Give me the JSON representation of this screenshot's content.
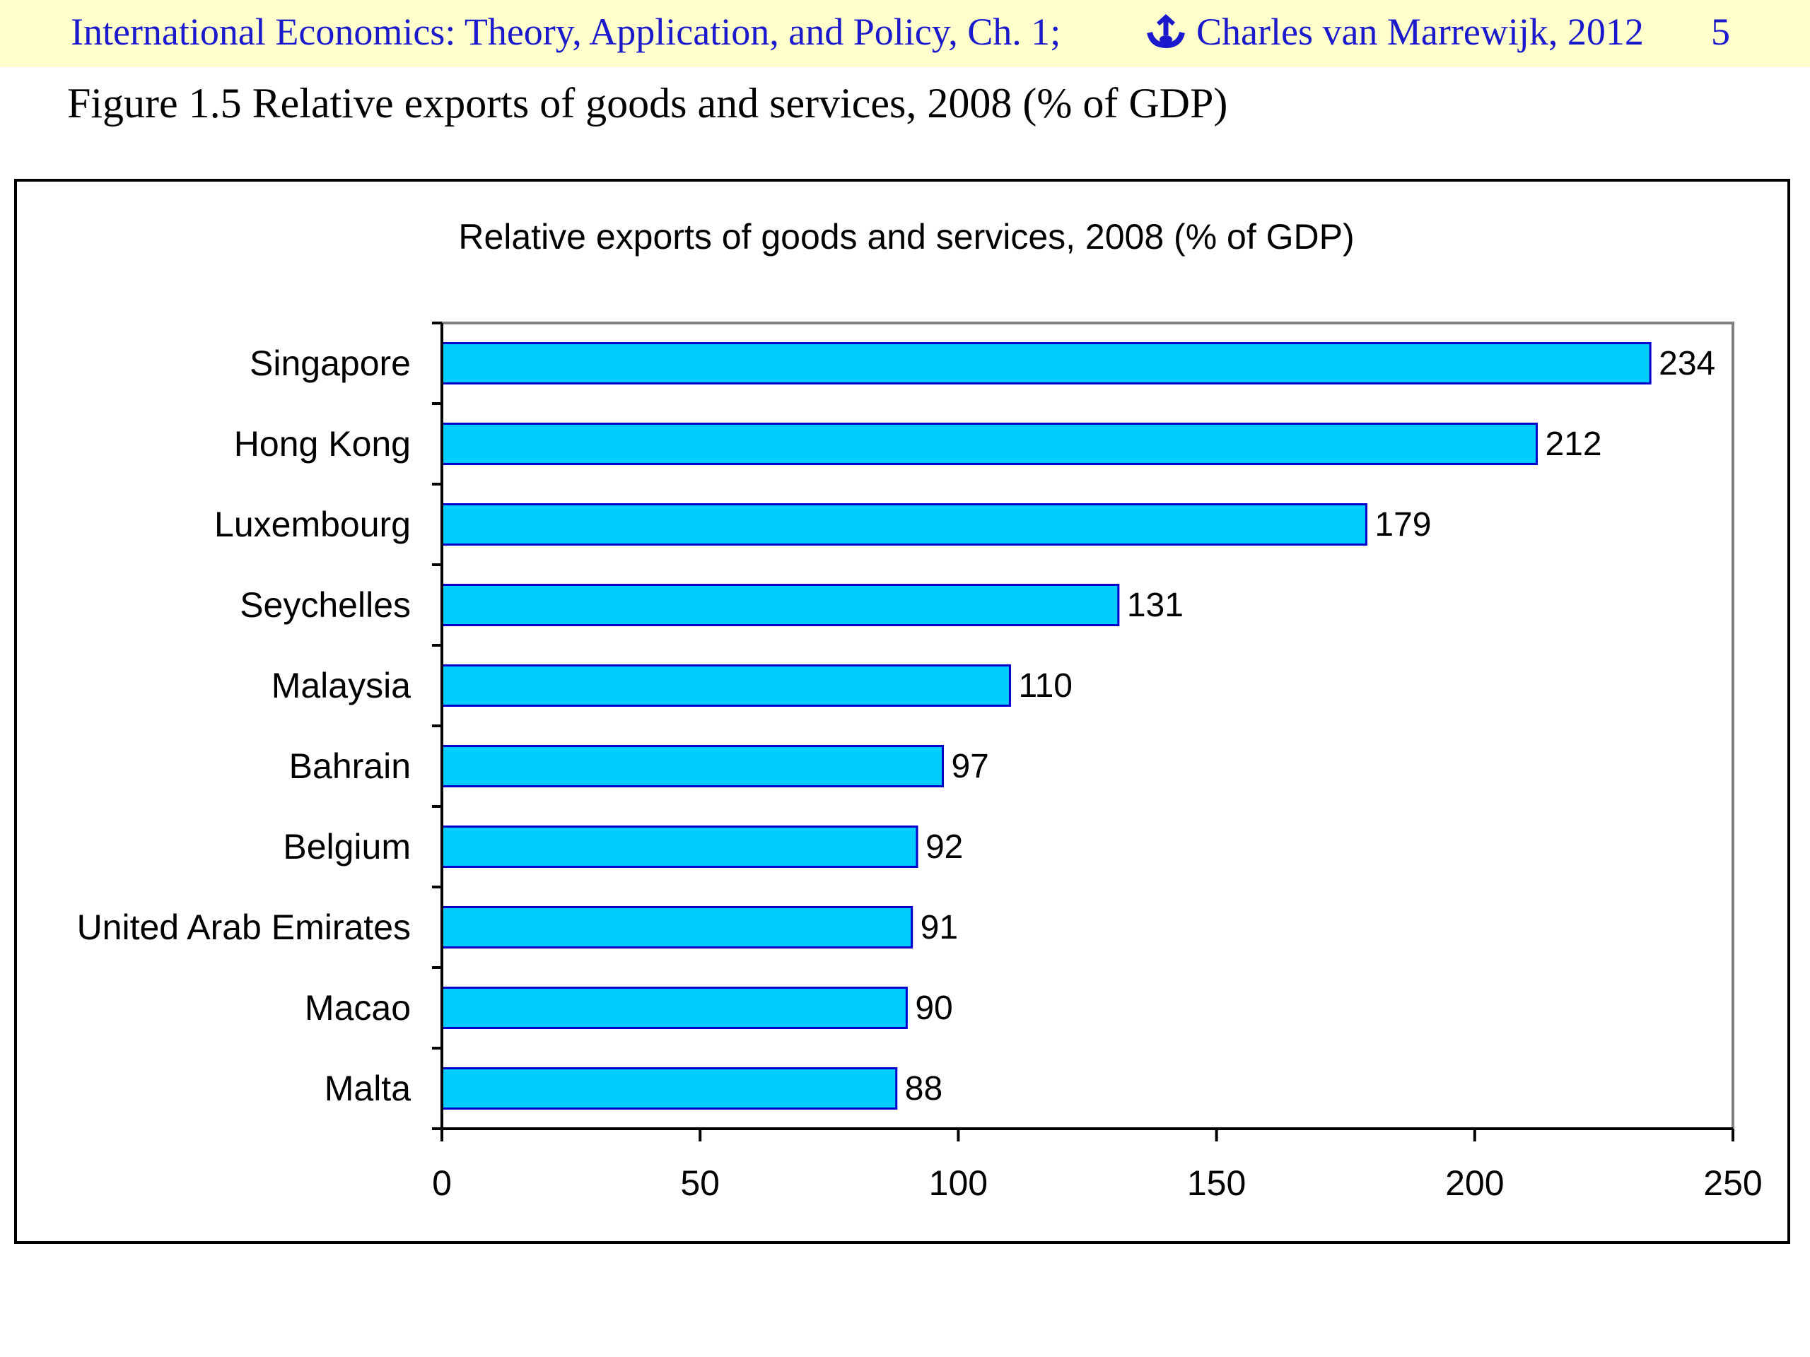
{
  "header": {
    "left_text": "International Economics: Theory, Application, and Policy, Ch. 1;",
    "author_text": "Charles van Marrewijk, 2012",
    "page_number": "5"
  },
  "figure_caption": "Figure 1.5 Relative exports of goods and services, 2008 (% of GDP)",
  "colors": {
    "header_bg": "#ffffcc",
    "header_text": "#1a1acc",
    "bar_fill": "#00ccff",
    "bar_stroke": "#0000cc"
  },
  "chart_data": {
    "type": "bar",
    "orientation": "horizontal",
    "title": "Relative exports of goods and services, 2008 (% of GDP)",
    "categories": [
      "Singapore",
      "Hong Kong",
      "Luxembourg",
      "Seychelles",
      "Malaysia",
      "Bahrain",
      "Belgium",
      "United Arab Emirates",
      "Macao",
      "Malta"
    ],
    "values": [
      234,
      212,
      179,
      131,
      110,
      97,
      92,
      91,
      90,
      88
    ],
    "data_labels": [
      "234",
      "212",
      "179",
      "131",
      "110",
      "97",
      "92",
      "91",
      "90",
      "88"
    ],
    "xlim": [
      0,
      250
    ],
    "xticks": [
      0,
      50,
      100,
      150,
      200,
      250
    ],
    "xlabel": "",
    "ylabel": "",
    "grid": false,
    "legend": "none"
  }
}
